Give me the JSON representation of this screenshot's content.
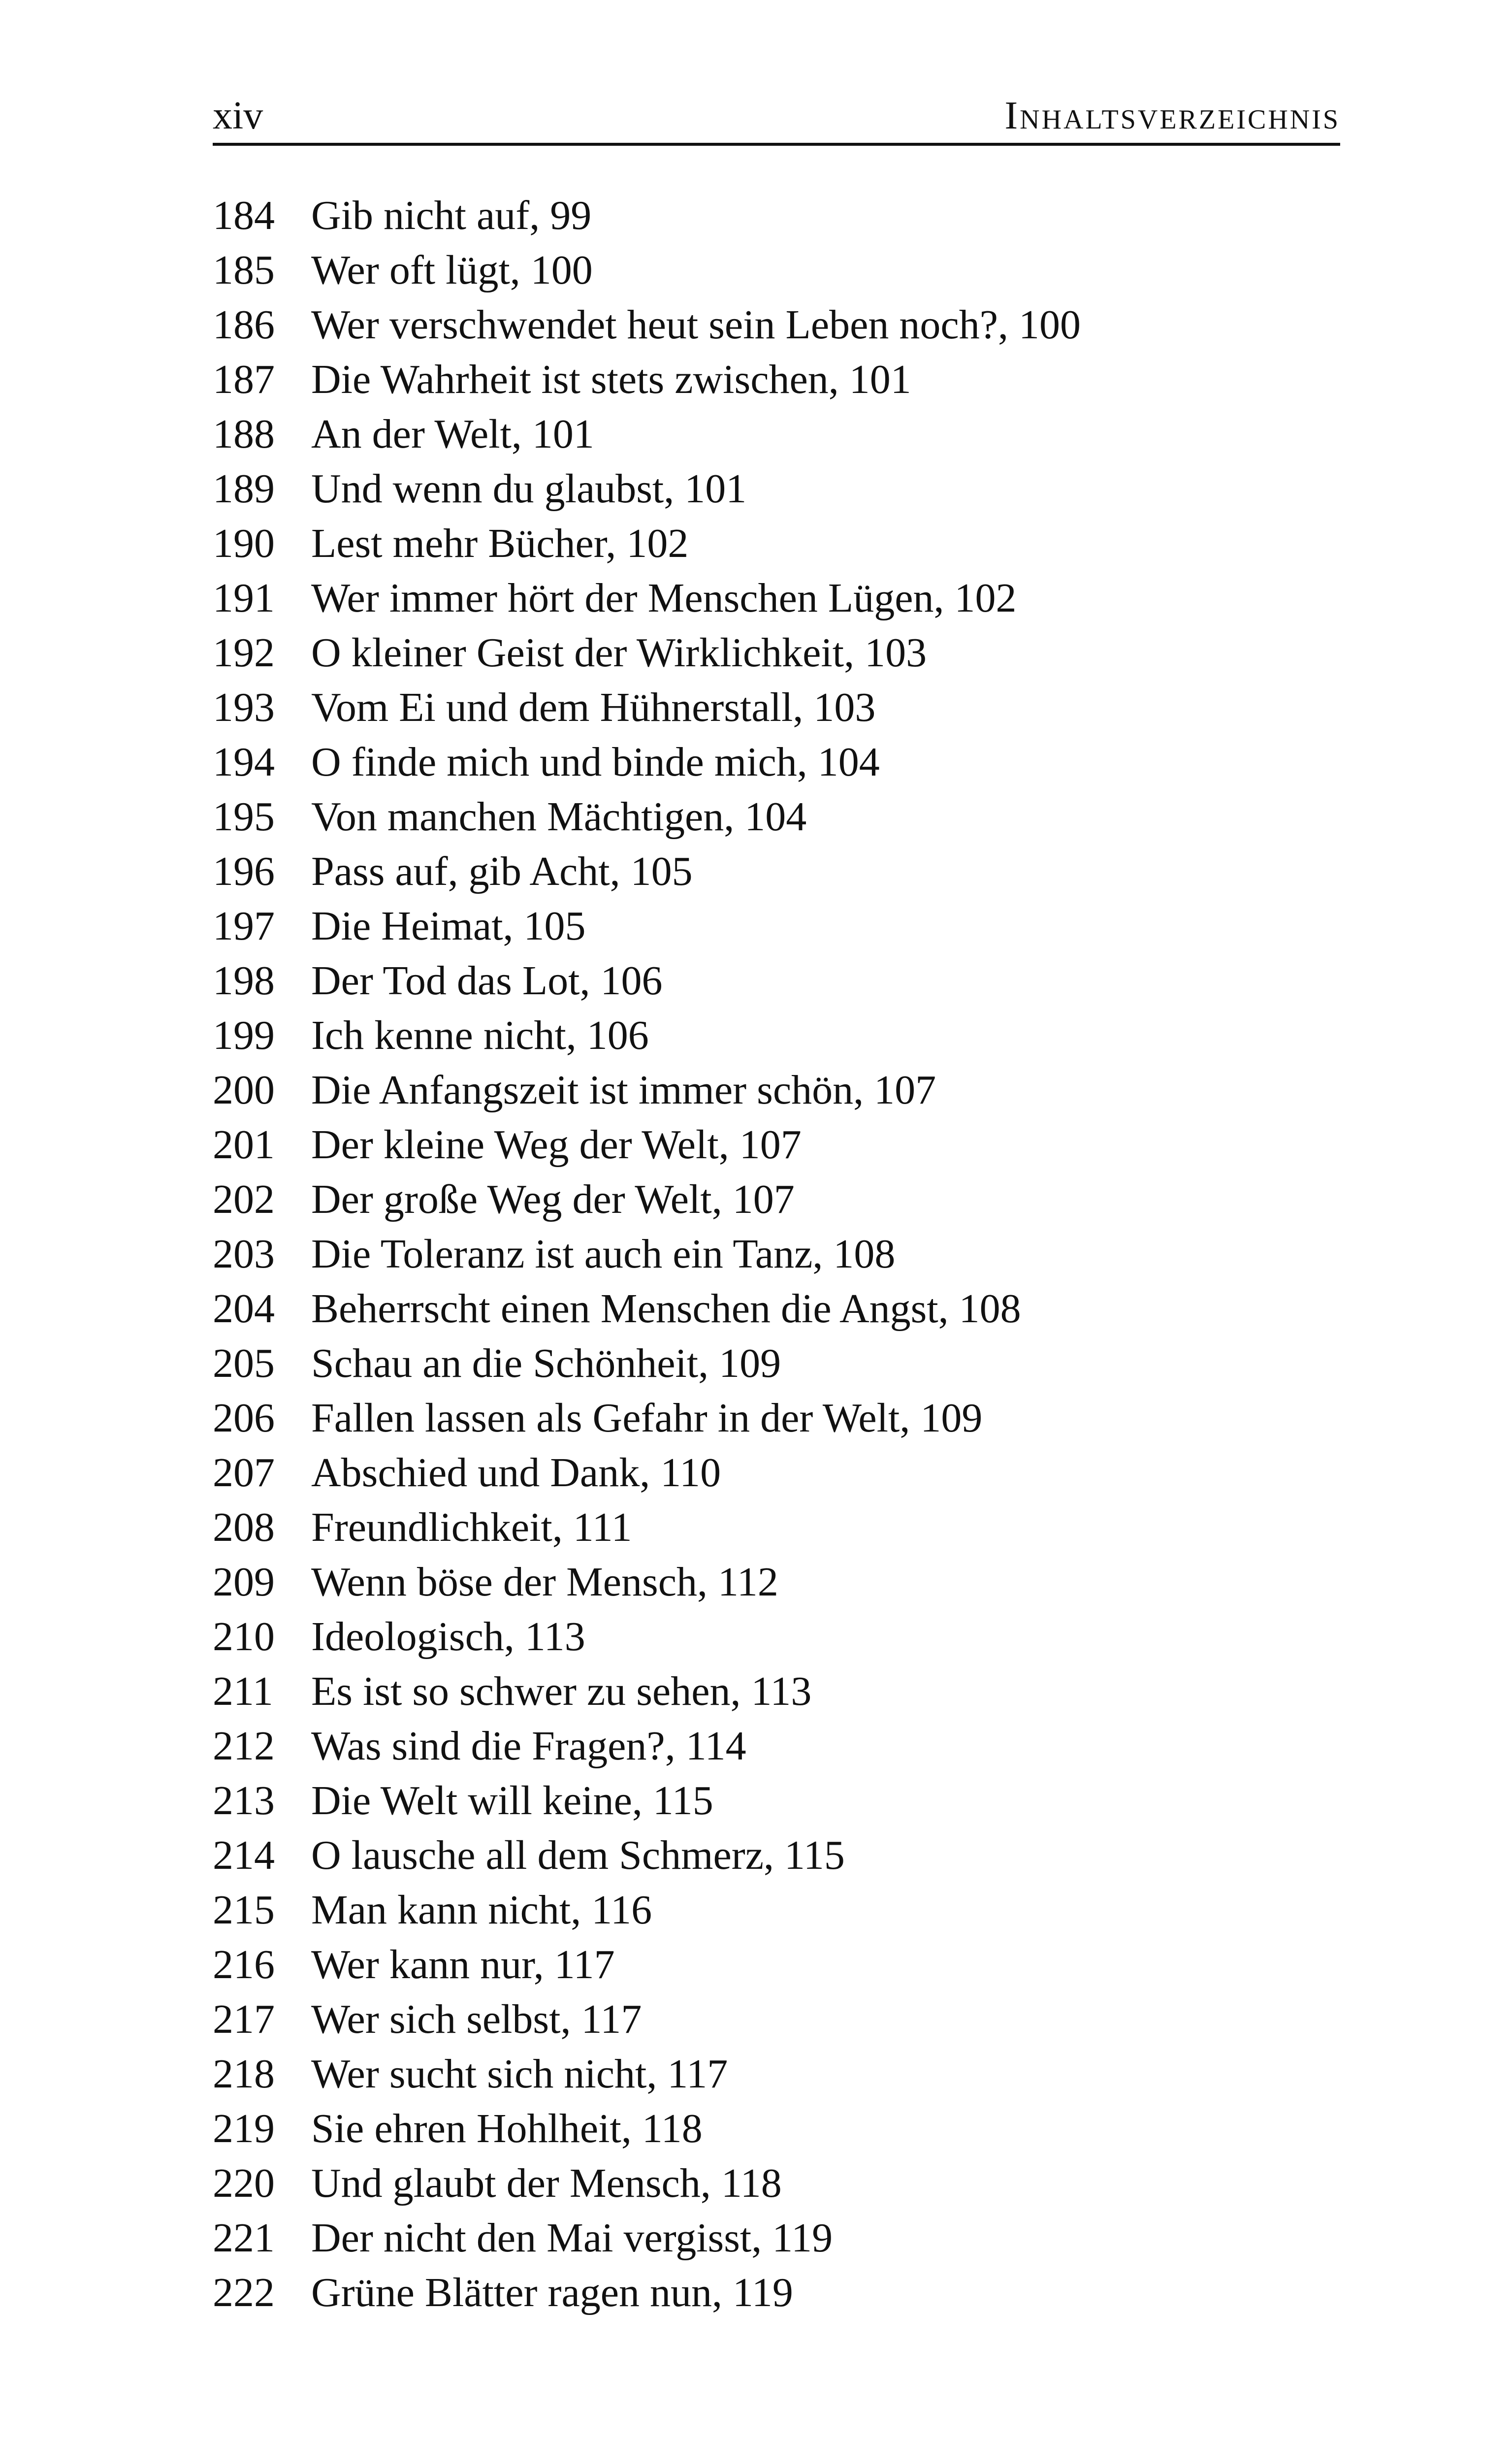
{
  "header": {
    "folio": "xiv",
    "running_title": "Inhaltsverzeichnis"
  },
  "entries": [
    {
      "num": "184",
      "title": "Gib nicht auf, 99"
    },
    {
      "num": "185",
      "title": "Wer oft lügt, 100"
    },
    {
      "num": "186",
      "title": "Wer verschwendet heut sein Leben noch?, 100"
    },
    {
      "num": "187",
      "title": "Die Wahrheit ist stets zwischen, 101"
    },
    {
      "num": "188",
      "title": "An der Welt, 101"
    },
    {
      "num": "189",
      "title": "Und wenn du glaubst, 101"
    },
    {
      "num": "190",
      "title": "Lest mehr Bücher, 102"
    },
    {
      "num": "191",
      "title": "Wer immer hört der Menschen Lügen, 102"
    },
    {
      "num": "192",
      "title": "O kleiner Geist der Wirklichkeit, 103"
    },
    {
      "num": "193",
      "title": "Vom Ei und dem Hühnerstall, 103"
    },
    {
      "num": "194",
      "title": "O finde mich und binde mich, 104"
    },
    {
      "num": "195",
      "title": "Von manchen Mächtigen, 104"
    },
    {
      "num": "196",
      "title": "Pass auf, gib Acht, 105"
    },
    {
      "num": "197",
      "title": "Die Heimat, 105"
    },
    {
      "num": "198",
      "title": "Der Tod das Lot, 106"
    },
    {
      "num": "199",
      "title": "Ich kenne nicht, 106"
    },
    {
      "num": "200",
      "title": "Die Anfangszeit ist immer schön, 107"
    },
    {
      "num": "201",
      "title": "Der kleine Weg der Welt, 107"
    },
    {
      "num": "202",
      "title": "Der große Weg der Welt, 107"
    },
    {
      "num": "203",
      "title": "Die Toleranz ist auch ein Tanz, 108"
    },
    {
      "num": "204",
      "title": "Beherrscht einen Menschen die Angst, 108"
    },
    {
      "num": "205",
      "title": "Schau an die Schönheit, 109"
    },
    {
      "num": "206",
      "title": "Fallen lassen als Gefahr in der Welt, 109"
    },
    {
      "num": "207",
      "title": "Abschied und Dank, 110"
    },
    {
      "num": "208",
      "title": "Freundlichkeit, 111"
    },
    {
      "num": "209",
      "title": "Wenn böse der Mensch, 112"
    },
    {
      "num": "210",
      "title": "Ideologisch, 113"
    },
    {
      "num": "211",
      "title": "Es ist so schwer zu sehen, 113"
    },
    {
      "num": "212",
      "title": "Was sind die Fragen?, 114"
    },
    {
      "num": "213",
      "title": "Die Welt will keine, 115"
    },
    {
      "num": "214",
      "title": "O lausche all dem Schmerz, 115"
    },
    {
      "num": "215",
      "title": "Man kann nicht, 116"
    },
    {
      "num": "216",
      "title": "Wer kann nur, 117"
    },
    {
      "num": "217",
      "title": "Wer sich selbst, 117"
    },
    {
      "num": "218",
      "title": "Wer sucht sich nicht, 117"
    },
    {
      "num": "219",
      "title": "Sie ehren Hohlheit, 118"
    },
    {
      "num": "220",
      "title": "Und glaubt der Mensch, 118"
    },
    {
      "num": "221",
      "title": "Der nicht den Mai vergisst, 119"
    },
    {
      "num": "222",
      "title": "Grüne Blätter ragen nun, 119"
    }
  ]
}
